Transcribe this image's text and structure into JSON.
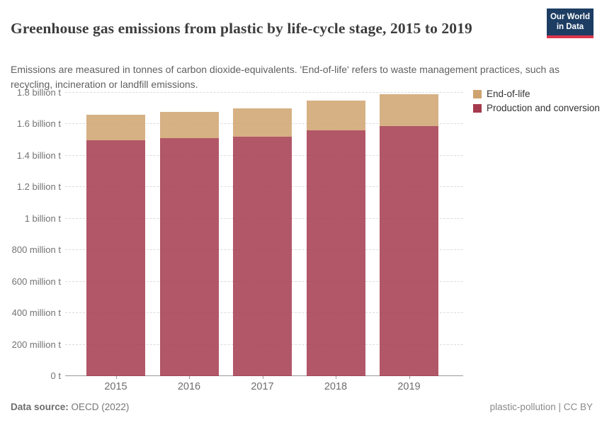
{
  "header": {
    "title": "Greenhouse gas emissions from plastic by life-cycle stage, 2015 to 2019",
    "subtitle": "Emissions are measured in tonnes of carbon dioxide-equivalents. 'End-of-life' refers to waste management practices, such as recycling, incineration or landfill emissions.",
    "logo": {
      "line1": "Our World",
      "line2": "in Data",
      "background_color": "#1d3d63",
      "accent_color": "#dc354c"
    }
  },
  "chart_data": {
    "type": "bar",
    "stacked": true,
    "title": "Greenhouse gas emissions from plastic by life-cycle stage, 2015 to 2019",
    "xlabel": "",
    "ylabel": "",
    "unit": "tonnes of CO2-equivalents",
    "categories": [
      "2015",
      "2016",
      "2017",
      "2018",
      "2019"
    ],
    "series": [
      {
        "name": "Production and conversion",
        "color": "#A43A4D",
        "values_billion_t": [
          1.5,
          1.51,
          1.52,
          1.56,
          1.59
        ]
      },
      {
        "name": "End-of-life",
        "color": "#CFA36F",
        "values_billion_t": [
          0.16,
          0.17,
          0.18,
          0.19,
          0.2
        ]
      }
    ],
    "totals_billion_t": [
      1.66,
      1.68,
      1.7,
      1.75,
      1.79
    ],
    "ylim_billion_t": [
      0,
      1.8
    ],
    "ytick_step_billion_t": 0.2,
    "ytick_labels": [
      "0 t",
      "200 million t",
      "400 million t",
      "600 million t",
      "800 million t",
      "1 billion t",
      "1.2 billion t",
      "1.4 billion t",
      "1.6 billion t",
      "1.8 billion t"
    ],
    "grid": "dashed-horizontal",
    "legend_position": "top-right",
    "legend": [
      {
        "label": "End-of-life",
        "color": "#CFA36F"
      },
      {
        "label": "Production and conversion",
        "color": "#A43A4D"
      }
    ]
  },
  "footer": {
    "source_label": "Data source:",
    "source_value": "OECD (2022)",
    "note": "plastic-pollution | CC BY"
  }
}
